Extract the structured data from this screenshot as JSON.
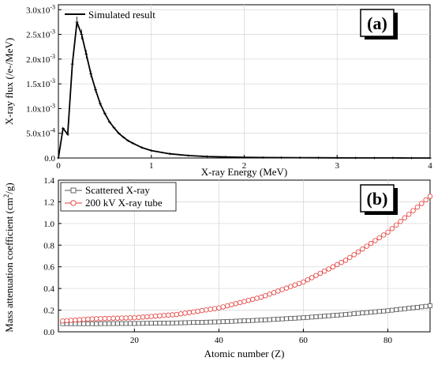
{
  "chart_data": [
    {
      "panel_label": "(a)",
      "type": "line",
      "xlabel": "X-ray Energy (MeV)",
      "ylabel": "X-ray flux (/e-/MeV)",
      "xlim": [
        0,
        4
      ],
      "ylim": [
        0,
        0.0031
      ],
      "x_ticks": [
        0,
        1,
        2,
        3,
        4
      ],
      "y_ticks": [
        {
          "value": 0,
          "mantissa": "0.0",
          "exponent": ""
        },
        {
          "value": 0.0005,
          "mantissa": "5.0x10",
          "exponent": "-4"
        },
        {
          "value": 0.001,
          "mantissa": "1.0x10",
          "exponent": "-3"
        },
        {
          "value": 0.0015,
          "mantissa": "1.5x10",
          "exponent": "-3"
        },
        {
          "value": 0.002,
          "mantissa": "2.0x10",
          "exponent": "-3"
        },
        {
          "value": 0.0025,
          "mantissa": "2.5x10",
          "exponent": "-3"
        },
        {
          "value": 0.003,
          "mantissa": "3.0x10",
          "exponent": "-3"
        }
      ],
      "grid": true,
      "legend_position": "top-left",
      "series": [
        {
          "name": "Simulated result",
          "color": "#000000",
          "error_bars": true,
          "x": [
            0.0,
            0.05,
            0.1,
            0.15,
            0.2,
            0.25,
            0.3,
            0.35,
            0.4,
            0.45,
            0.5,
            0.55,
            0.6,
            0.65,
            0.7,
            0.75,
            0.8,
            0.9,
            1.0,
            1.2,
            1.4,
            1.6,
            1.8,
            2.0,
            2.2,
            2.4,
            2.6,
            2.8,
            3.0,
            3.2,
            3.4,
            3.6,
            3.8,
            4.0
          ],
          "y": [
            0.0,
            0.0006,
            0.00048,
            0.0019,
            0.00275,
            0.0025,
            0.0021,
            0.0017,
            0.00138,
            0.0011,
            0.0009,
            0.00073,
            0.00061,
            0.0005,
            0.00042,
            0.00035,
            0.0003,
            0.00021,
            0.00015,
            8.5e-05,
            5e-05,
            3e-05,
            2e-05,
            1.5e-05,
            1e-05,
            8e-06,
            6e-06,
            4e-06,
            3e-06,
            2e-06,
            1e-06,
            1e-06,
            5e-07,
            0.0
          ]
        }
      ]
    },
    {
      "panel_label": "(b)",
      "type": "line",
      "xlabel": "Atomic number (Z)",
      "ylabel": "Mass attenuation coefficient (cm",
      "ylabel_superscript": "2",
      "ylabel_suffix": "/g)",
      "xlim": [
        2,
        90
      ],
      "ylim": [
        0,
        1.4
      ],
      "x_ticks": [
        20,
        40,
        60,
        80
      ],
      "y_ticks": [
        0.0,
        0.2,
        0.4,
        0.6,
        0.8,
        1.0,
        1.2,
        1.4
      ],
      "grid": true,
      "legend_position": "top-left",
      "z_start": 3,
      "z_end": 90,
      "series": [
        {
          "name": "Scattered X-ray",
          "marker": "square",
          "color": "#555555",
          "x": [
            3,
            10,
            20,
            30,
            40,
            50,
            60,
            70,
            80,
            90
          ],
          "y": [
            0.075,
            0.075,
            0.077,
            0.082,
            0.092,
            0.108,
            0.13,
            0.16,
            0.195,
            0.24
          ]
        },
        {
          "name": "200 kV X-ray tube",
          "marker": "circle",
          "color": "#e53935",
          "x": [
            3,
            10,
            20,
            30,
            40,
            50,
            60,
            70,
            80,
            90
          ],
          "y": [
            0.1,
            0.12,
            0.13,
            0.16,
            0.22,
            0.32,
            0.46,
            0.66,
            0.92,
            1.25
          ]
        }
      ]
    }
  ]
}
